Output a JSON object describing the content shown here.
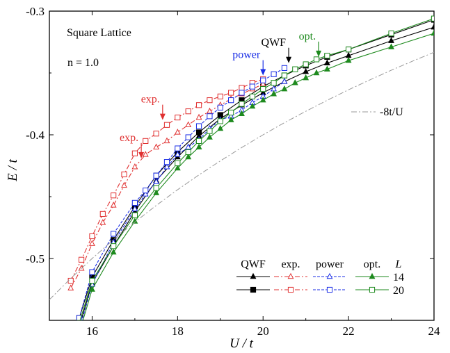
{
  "chart_data": {
    "type": "line",
    "xlabel": "U / t",
    "ylabel": "E / t",
    "xlim": [
      15,
      24
    ],
    "ylim": [
      -0.55,
      -0.3
    ],
    "xticks": [
      {
        "v": 16,
        "label": "16"
      },
      {
        "v": 18,
        "label": "18"
      },
      {
        "v": 20,
        "label": "20"
      },
      {
        "v": 22,
        "label": "22"
      },
      {
        "v": 24,
        "label": "24"
      }
    ],
    "yticks": [
      {
        "v": -0.3,
        "label": "-0.3"
      },
      {
        "v": -0.4,
        "label": "-0.4"
      },
      {
        "v": -0.5,
        "label": "-0.5"
      }
    ],
    "colors": {
      "qwf": "#000000",
      "exp": "#e03030",
      "power": "#1a2ee6",
      "opt": "#1e8a1e",
      "ref": "#999999"
    },
    "series": [
      {
        "name": "QWF",
        "L": "14",
        "method": "qwf",
        "marker": "triangle",
        "filled": true,
        "x": [
          15.7,
          16.0,
          16.5,
          17.0,
          17.5,
          18.0,
          18.5,
          19.0,
          19.5,
          20.0,
          20.5,
          21.0,
          21.5,
          22.0,
          23.0,
          24.0
        ],
        "y": [
          -0.555,
          -0.52,
          -0.49,
          -0.462,
          -0.437,
          -0.418,
          -0.401,
          -0.387,
          -0.376,
          -0.366,
          -0.357,
          -0.349,
          -0.342,
          -0.336,
          -0.324,
          -0.313
        ]
      },
      {
        "name": "QWF",
        "L": "20",
        "method": "qwf",
        "marker": "square",
        "filled": true,
        "x": [
          15.7,
          16.0,
          16.5,
          17.0,
          17.5,
          18.0,
          18.5,
          19.0,
          19.5,
          20.0,
          20.5,
          21.0,
          21.5,
          22.0,
          23.0,
          24.0
        ],
        "y": [
          -0.548,
          -0.515,
          -0.485,
          -0.458,
          -0.433,
          -0.414,
          -0.398,
          -0.384,
          -0.372,
          -0.361,
          -0.352,
          -0.344,
          -0.337,
          -0.331,
          -0.319,
          -0.307
        ]
      },
      {
        "name": "exp.",
        "L": "14",
        "method": "exp",
        "marker": "triangle",
        "filled": false,
        "x": [
          15.5,
          15.75,
          16.0,
          16.25,
          16.5,
          16.75,
          17.0,
          17.25,
          17.5,
          17.75,
          18.0,
          18.25,
          18.5,
          18.75,
          19.0,
          19.25,
          19.5,
          19.75,
          20.0
        ],
        "y": [
          -0.524,
          -0.508,
          -0.488,
          -0.471,
          -0.457,
          -0.441,
          -0.426,
          -0.416,
          -0.41,
          -0.405,
          -0.398,
          -0.392,
          -0.386,
          -0.381,
          -0.376,
          -0.371,
          -0.367,
          -0.363,
          -0.359
        ]
      },
      {
        "name": "exp.",
        "L": "20",
        "method": "exp",
        "marker": "square",
        "filled": false,
        "x": [
          15.5,
          15.75,
          16.0,
          16.25,
          16.5,
          16.75,
          17.0,
          17.25,
          17.5,
          17.75,
          18.0,
          18.25,
          18.5,
          18.75,
          19.0,
          19.25,
          19.5,
          19.75,
          20.0
        ],
        "y": [
          -0.518,
          -0.501,
          -0.482,
          -0.464,
          -0.449,
          -0.432,
          -0.415,
          -0.405,
          -0.399,
          -0.392,
          -0.386,
          -0.381,
          -0.376,
          -0.372,
          -0.369,
          -0.366,
          -0.362,
          -0.358,
          -0.355
        ]
      },
      {
        "name": "power",
        "L": "14",
        "method": "power",
        "marker": "triangle",
        "filled": false,
        "x": [
          15.7,
          16.0,
          16.5,
          17.0,
          17.25,
          17.5,
          17.75,
          18.0,
          18.25,
          18.5,
          18.75,
          19.0,
          19.25,
          19.5,
          19.75,
          20.0,
          20.25,
          20.5
        ],
        "y": [
          -0.558,
          -0.521,
          -0.487,
          -0.46,
          -0.448,
          -0.438,
          -0.426,
          -0.416,
          -0.41,
          -0.404,
          -0.395,
          -0.388,
          -0.385,
          -0.38,
          -0.374,
          -0.369,
          -0.363,
          -0.357
        ]
      },
      {
        "name": "power",
        "L": "20",
        "method": "power",
        "marker": "square",
        "filled": false,
        "x": [
          15.7,
          16.0,
          16.5,
          17.0,
          17.25,
          17.5,
          17.75,
          18.0,
          18.25,
          18.5,
          18.75,
          19.0,
          19.25,
          19.5,
          19.75,
          20.0,
          20.25,
          20.5
        ],
        "y": [
          -0.548,
          -0.511,
          -0.48,
          -0.455,
          -0.445,
          -0.433,
          -0.422,
          -0.411,
          -0.402,
          -0.393,
          -0.385,
          -0.378,
          -0.372,
          -0.366,
          -0.361,
          -0.356,
          -0.351,
          -0.346
        ]
      },
      {
        "name": "opt.",
        "L": "14",
        "method": "opt",
        "marker": "triangle",
        "filled": true,
        "x": [
          15.7,
          16.0,
          16.5,
          17.0,
          17.5,
          18.0,
          18.25,
          18.5,
          18.75,
          19.0,
          19.25,
          19.5,
          19.75,
          20.0,
          20.25,
          20.5,
          20.75,
          21.0,
          21.25,
          21.5,
          22.0,
          23.0,
          24.0
        ],
        "y": [
          -0.56,
          -0.525,
          -0.495,
          -0.47,
          -0.447,
          -0.427,
          -0.418,
          -0.41,
          -0.402,
          -0.395,
          -0.388,
          -0.383,
          -0.377,
          -0.372,
          -0.367,
          -0.363,
          -0.358,
          -0.354,
          -0.35,
          -0.347,
          -0.34,
          -0.329,
          -0.318
        ]
      },
      {
        "name": "opt.",
        "L": "20",
        "method": "opt",
        "marker": "square",
        "filled": false,
        "x": [
          15.7,
          16.0,
          16.5,
          17.0,
          17.5,
          18.0,
          18.25,
          18.5,
          18.75,
          19.0,
          19.25,
          19.5,
          19.75,
          20.0,
          20.25,
          20.5,
          20.75,
          21.0,
          21.25,
          21.5,
          22.0,
          23.0,
          24.0
        ],
        "y": [
          -0.552,
          -0.518,
          -0.49,
          -0.465,
          -0.443,
          -0.423,
          -0.414,
          -0.405,
          -0.397,
          -0.389,
          -0.382,
          -0.375,
          -0.369,
          -0.363,
          -0.358,
          -0.352,
          -0.347,
          -0.343,
          -0.339,
          -0.336,
          -0.331,
          -0.318,
          -0.306
        ]
      },
      {
        "name": "-8t/U",
        "method": "ref",
        "marker": "none",
        "dash": "dashdot",
        "x": [
          15,
          15.5,
          16,
          16.5,
          17,
          17.5,
          18,
          18.5,
          19,
          19.5,
          20,
          20.5,
          21,
          21.5,
          22,
          22.5,
          23,
          23.5,
          24
        ],
        "y": [
          -0.5333,
          -0.5161,
          -0.5,
          -0.4848,
          -0.4706,
          -0.4571,
          -0.4444,
          -0.4324,
          -0.4211,
          -0.4103,
          -0.4,
          -0.3902,
          -0.381,
          -0.3721,
          -0.3636,
          -0.3556,
          -0.3478,
          -0.3404,
          -0.3333
        ]
      }
    ],
    "annotations": {
      "lattice": "Square Lattice",
      "density": "n = 1.0",
      "ref_label": "-8t/U",
      "arrows": [
        {
          "label": "QWF",
          "method": "qwf",
          "x": 20.6,
          "y": -0.342
        },
        {
          "label": "opt.",
          "method": "opt",
          "x": 21.3,
          "y": -0.337
        },
        {
          "label": "power",
          "method": "power",
          "x": 20.0,
          "y": -0.352
        },
        {
          "label": "exp.",
          "method": "exp",
          "x": 17.65,
          "y": -0.388
        },
        {
          "label": "exp.",
          "method": "exp",
          "x": 17.15,
          "y": -0.419
        }
      ]
    },
    "legend": {
      "position": "bottom-right",
      "headers": [
        "QWF",
        "exp.",
        "power",
        "opt.",
        "L"
      ],
      "rows": [
        "14",
        "20"
      ]
    }
  }
}
